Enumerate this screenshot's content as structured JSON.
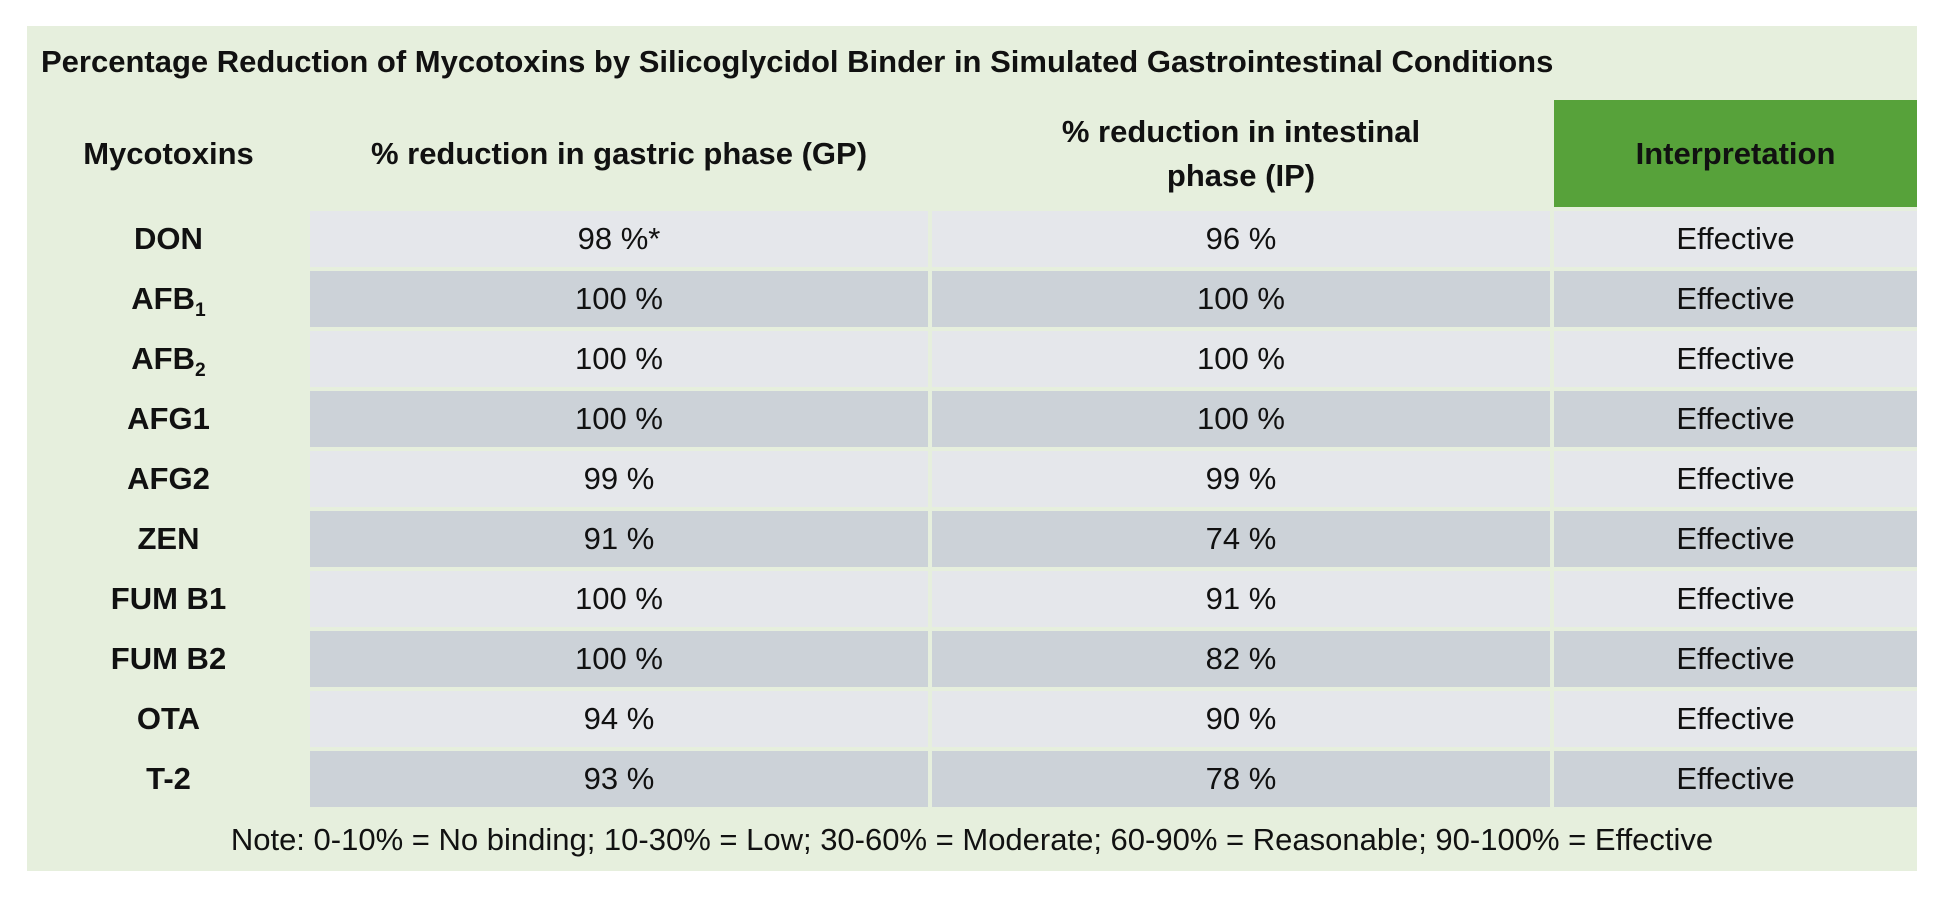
{
  "title": "Percentage Reduction of Mycotoxins by Silicoglycidol Binder in Simulated Gastrointestinal Conditions",
  "columns": {
    "mycotoxins": "Mycotoxins",
    "gastric": "% reduction in gastric phase (GP)",
    "intestinal": "% reduction in intestinal phase (IP)",
    "interpretation": "Interpretation"
  },
  "rows": [
    {
      "toxin": "DON",
      "toxin_sub": "",
      "gp": "98 %*",
      "ip": "96 %",
      "interpretation": "Effective"
    },
    {
      "toxin": "AFB",
      "toxin_sub": "1",
      "gp": "100 %",
      "ip": "100 %",
      "interpretation": "Effective"
    },
    {
      "toxin": "AFB",
      "toxin_sub": "2",
      "gp": "100 %",
      "ip": "100 %",
      "interpretation": "Effective"
    },
    {
      "toxin": "AFG1",
      "toxin_sub": "",
      "gp": "100 %",
      "ip": "100 %",
      "interpretation": "Effective"
    },
    {
      "toxin": "AFG2",
      "toxin_sub": "",
      "gp": "99 %",
      "ip": "99 %",
      "interpretation": "Effective"
    },
    {
      "toxin": "ZEN",
      "toxin_sub": "",
      "gp": "91 %",
      "ip": "74 %",
      "interpretation": "Effective"
    },
    {
      "toxin": "FUM B1",
      "toxin_sub": "",
      "gp": "100 %",
      "ip": "91 %",
      "interpretation": "Effective"
    },
    {
      "toxin": "FUM B2",
      "toxin_sub": "",
      "gp": "100 %",
      "ip": "82 %",
      "interpretation": "Effective"
    },
    {
      "toxin": "OTA",
      "toxin_sub": "",
      "gp": "94 %",
      "ip": "90 %",
      "interpretation": "Effective"
    },
    {
      "toxin": "T-2",
      "toxin_sub": "",
      "gp": "93 %",
      "ip": "78 %",
      "interpretation": "Effective"
    }
  ],
  "note": "Note: 0-10% = No binding; 10-30% = Low; 30-60% = Moderate; 60-90% = Reasonable;  90-100% = Effective",
  "colors": {
    "background": "#e6efdd",
    "header_accent": "#57a23a",
    "row_light": "#e5e7eb",
    "row_dark": "#ccd2d8"
  }
}
